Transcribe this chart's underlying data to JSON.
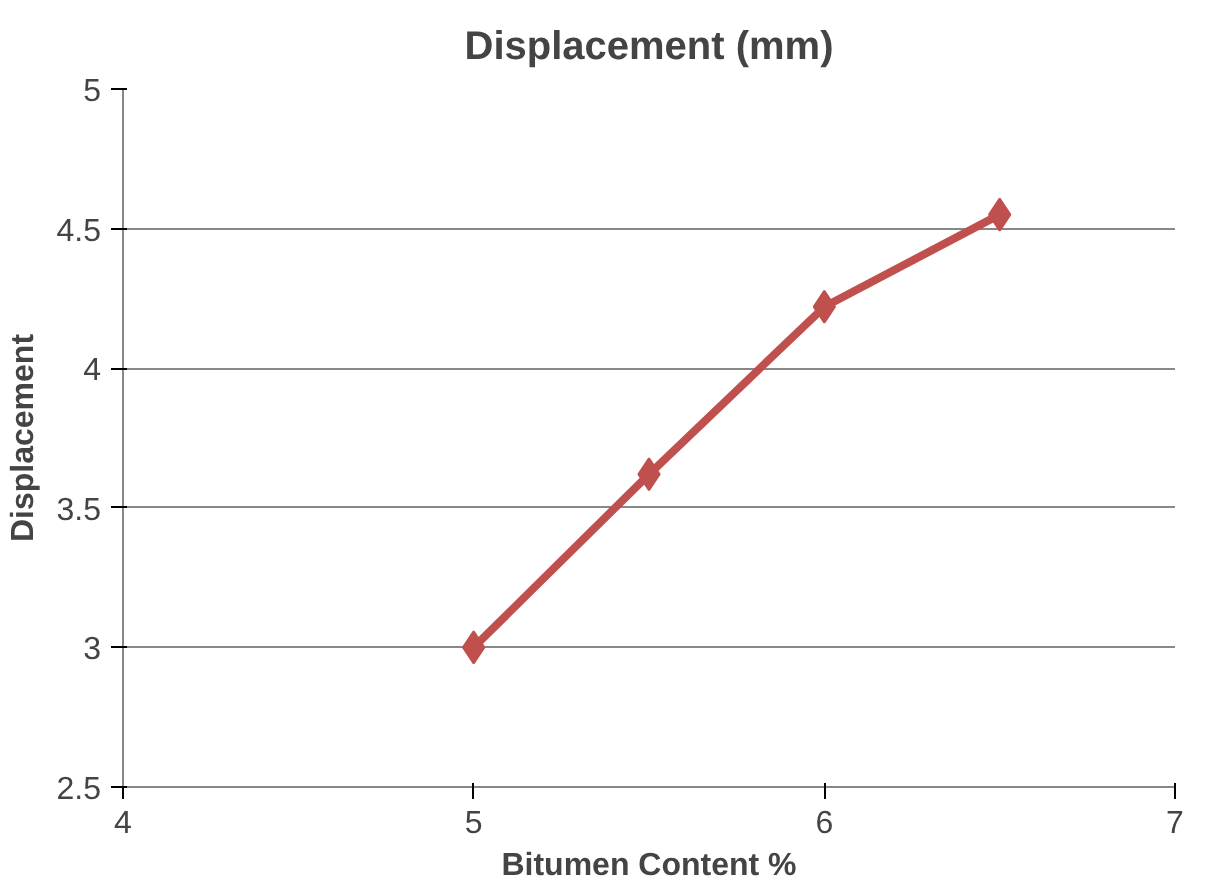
{
  "chart_data": {
    "type": "line",
    "title": "Displacement (mm)",
    "xlabel": "Bitumen Content %",
    "ylabel": "Displacement",
    "x": [
      5,
      5.5,
      6,
      6.5
    ],
    "series": [
      {
        "color": "#c0504d",
        "values": [
          3,
          3.62,
          4.22,
          4.55
        ]
      }
    ],
    "xlim": [
      4,
      7
    ],
    "xticks": [
      4,
      5,
      6,
      7
    ],
    "ylim": [
      2.5,
      5
    ],
    "yticks": [
      2.5,
      3,
      3.5,
      4,
      4.5,
      5
    ],
    "grid": "y",
    "marker": "diamond",
    "line_style": "solid"
  }
}
